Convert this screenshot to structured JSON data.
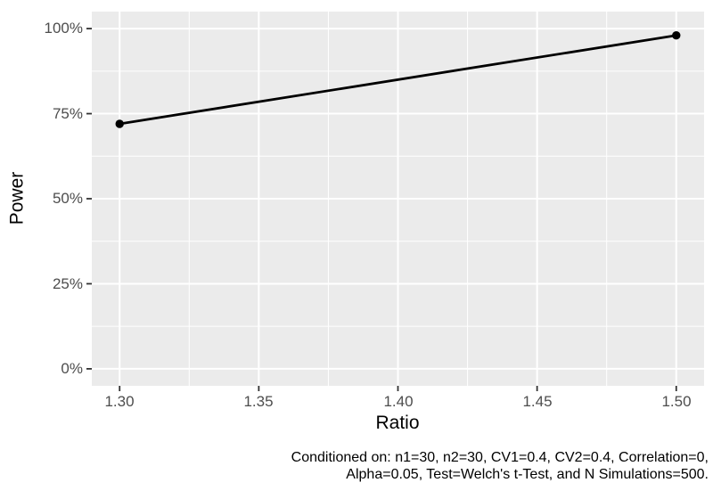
{
  "chart_data": {
    "type": "line",
    "title": "",
    "xlabel": "Ratio",
    "ylabel": "Power",
    "x": [
      1.3,
      1.5
    ],
    "y": [
      0.72,
      0.98
    ],
    "y_values_percent": [
      72,
      98
    ],
    "y_format": "percent",
    "x_ticks": [
      1.3,
      1.35,
      1.4,
      1.45,
      1.5
    ],
    "x_tick_labels": [
      "1.30",
      "1.35",
      "1.40",
      "1.45",
      "1.50"
    ],
    "y_ticks": [
      0,
      0.25,
      0.5,
      0.75,
      1.0
    ],
    "y_tick_labels": [
      "0%",
      "25%",
      "50%",
      "75%",
      "100%"
    ],
    "xlim": [
      1.29,
      1.51
    ],
    "ylim": [
      -0.05,
      1.05
    ],
    "grid": "major-and-minor",
    "legend": "none",
    "colors": {
      "panel_bg": "#EBEBEB",
      "grid": "#FFFFFF",
      "line": "#000000",
      "point": "#000000",
      "tick_mark": "#333333",
      "tick_label": "#4D4D4D",
      "axis_title": "#000000",
      "caption": "#000000"
    },
    "caption_line1": "Conditioned on: n1=30, n2=30, CV1=0.4, CV2=0.4, Correlation=0,",
    "caption_line2": "Alpha=0.05, Test=Welch's t-Test, and N Simulations=500."
  }
}
